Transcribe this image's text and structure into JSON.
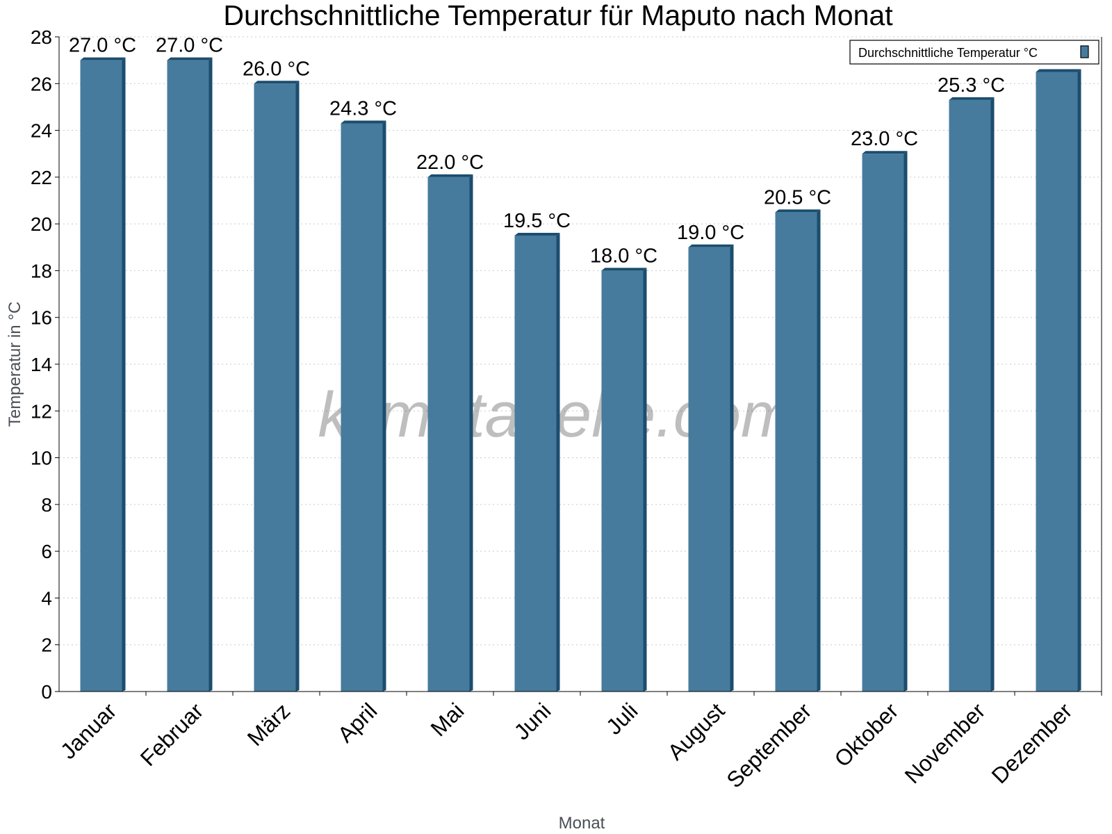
{
  "chart_data": {
    "type": "bar",
    "title": "Durchschnittliche Temperatur für Maputo nach Monat",
    "xlabel": "Monat",
    "ylabel": "Temperatur in °C",
    "categories": [
      "Januar",
      "Februar",
      "März",
      "April",
      "Mai",
      "Juni",
      "Juli",
      "August",
      "September",
      "Oktober",
      "November",
      "Dezember"
    ],
    "series": [
      {
        "name": "Durchschnittliche Temperatur °C",
        "values": [
          27.0,
          27.0,
          26.0,
          24.3,
          22.0,
          19.5,
          18.0,
          19.0,
          20.5,
          23.0,
          25.3,
          26.5
        ],
        "color": "#467b9d",
        "shade": "#1b4d6e"
      }
    ],
    "data_labels": [
      "27.0 °C",
      "27.0 °C",
      "26.0 °C",
      "24.3 °C",
      "22.0 °C",
      "19.5 °C",
      "18.0 °C",
      "19.0 °C",
      "20.5 °C",
      "23.0 °C",
      "25.3 °C",
      ""
    ],
    "ylim": [
      0,
      28
    ],
    "yticks": [
      0,
      2,
      4,
      6,
      8,
      10,
      12,
      14,
      16,
      18,
      20,
      22,
      24,
      26,
      28
    ],
    "grid": true,
    "legend_position": "top-right",
    "watermark": "klimatabelle.com"
  }
}
